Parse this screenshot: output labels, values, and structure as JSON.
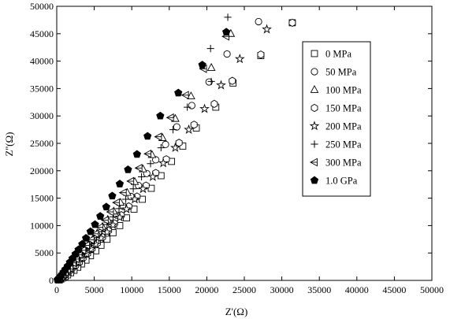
{
  "chart_data": {
    "type": "scatter",
    "title": "",
    "xlabel": "Z'(Ω)",
    "ylabel": "Z''(Ω)",
    "xlim": [
      0,
      50000
    ],
    "ylim": [
      0,
      50000
    ],
    "xticks": [
      "0",
      "5000",
      "10000",
      "15000",
      "20000",
      "25000",
      "30000",
      "35000",
      "40000",
      "45000",
      "50000"
    ],
    "yticks": [
      "0",
      "5000",
      "10000",
      "15000",
      "20000",
      "25000",
      "30000",
      "35000",
      "40000",
      "45000",
      "50000"
    ],
    "grid": false,
    "legend_position": "right",
    "series": [
      {
        "name": "0 MPa",
        "marker": "square",
        "points": [
          [
            31400,
            47000
          ],
          [
            27200,
            41000
          ],
          [
            23500,
            36000
          ],
          [
            21200,
            31600
          ],
          [
            18600,
            27800
          ],
          [
            16800,
            24500
          ],
          [
            15300,
            21700
          ],
          [
            13900,
            19100
          ],
          [
            12600,
            16800
          ],
          [
            11400,
            14800
          ],
          [
            10300,
            13000
          ],
          [
            9300,
            11400
          ],
          [
            8400,
            10000
          ],
          [
            7500,
            8700
          ],
          [
            6700,
            7500
          ],
          [
            5900,
            6400
          ],
          [
            5200,
            5400
          ],
          [
            4500,
            4500
          ],
          [
            3900,
            3700
          ],
          [
            3300,
            3000
          ],
          [
            2800,
            2400
          ],
          [
            2300,
            1850
          ],
          [
            1850,
            1400
          ],
          [
            1450,
            1000
          ],
          [
            1100,
            700
          ],
          [
            800,
            450
          ],
          [
            550,
            250
          ],
          [
            350,
            100
          ]
        ]
      },
      {
        "name": "50 MPa",
        "marker": "circle",
        "points": [
          [
            26900,
            47200
          ],
          [
            22700,
            41300
          ],
          [
            20300,
            36200
          ],
          [
            18000,
            31900
          ],
          [
            16000,
            28000
          ],
          [
            14500,
            24800
          ],
          [
            13200,
            22000
          ],
          [
            12000,
            19500
          ],
          [
            10900,
            17300
          ],
          [
            9900,
            15300
          ],
          [
            8900,
            13500
          ],
          [
            8000,
            11900
          ],
          [
            7200,
            10400
          ],
          [
            6400,
            9000
          ],
          [
            5700,
            7800
          ],
          [
            5000,
            6700
          ],
          [
            4400,
            5700
          ],
          [
            3800,
            4800
          ],
          [
            3200,
            3900
          ],
          [
            2700,
            3200
          ],
          [
            2200,
            2500
          ],
          [
            1800,
            1900
          ],
          [
            1400,
            1400
          ],
          [
            1050,
            1000
          ],
          [
            750,
            650
          ],
          [
            500,
            380
          ],
          [
            300,
            180
          ]
        ]
      },
      {
        "name": "100 MPa",
        "marker": "triangle-up",
        "points": [
          [
            23200,
            45000
          ],
          [
            20600,
            38800
          ],
          [
            17900,
            33600
          ],
          [
            15800,
            29500
          ],
          [
            14100,
            26000
          ],
          [
            12700,
            22900
          ],
          [
            11500,
            20300
          ],
          [
            10400,
            18000
          ],
          [
            9400,
            16000
          ],
          [
            8500,
            14200
          ],
          [
            7600,
            12600
          ],
          [
            6800,
            11100
          ],
          [
            6100,
            9800
          ],
          [
            5400,
            8600
          ],
          [
            4800,
            7500
          ],
          [
            4200,
            6500
          ],
          [
            3700,
            5600
          ],
          [
            3200,
            4700
          ],
          [
            2700,
            3900
          ],
          [
            2300,
            3200
          ],
          [
            1900,
            2600
          ],
          [
            1550,
            2000
          ],
          [
            1200,
            1500
          ],
          [
            900,
            1050
          ],
          [
            650,
            700
          ],
          [
            420,
            400
          ],
          [
            250,
            180
          ]
        ]
      },
      {
        "name": "150 MPa",
        "marker": "hexagon",
        "points": [
          [
            31400,
            47000
          ],
          [
            27200,
            41200
          ],
          [
            23400,
            36400
          ],
          [
            21000,
            32200
          ],
          [
            18300,
            28400
          ],
          [
            16300,
            25100
          ],
          [
            14600,
            22100
          ],
          [
            13200,
            19600
          ],
          [
            11900,
            17300
          ],
          [
            10700,
            15300
          ],
          [
            9600,
            13500
          ],
          [
            8600,
            11900
          ],
          [
            7700,
            10400
          ],
          [
            6900,
            9100
          ],
          [
            6100,
            7900
          ],
          [
            5400,
            6800
          ],
          [
            4700,
            5800
          ],
          [
            4100,
            4900
          ],
          [
            3500,
            4100
          ],
          [
            3000,
            3300
          ],
          [
            2500,
            2700
          ],
          [
            2000,
            2100
          ],
          [
            1600,
            1600
          ],
          [
            1250,
            1150
          ],
          [
            900,
            750
          ],
          [
            620,
            450
          ],
          [
            380,
            220
          ]
        ]
      },
      {
        "name": "200 MPa",
        "marker": "star",
        "points": [
          [
            28000,
            45800
          ],
          [
            24400,
            40400
          ],
          [
            21900,
            35600
          ],
          [
            19700,
            31300
          ],
          [
            17600,
            27500
          ],
          [
            15800,
            24200
          ],
          [
            14200,
            21400
          ],
          [
            12800,
            18900
          ],
          [
            11500,
            16700
          ],
          [
            10400,
            14800
          ],
          [
            9300,
            13000
          ],
          [
            8400,
            11500
          ],
          [
            7500,
            10100
          ],
          [
            6700,
            8800
          ],
          [
            5900,
            7700
          ],
          [
            5200,
            6600
          ],
          [
            4600,
            5700
          ],
          [
            4000,
            4800
          ],
          [
            3400,
            4000
          ],
          [
            2900,
            3300
          ],
          [
            2400,
            2600
          ],
          [
            2000,
            2000
          ],
          [
            1600,
            1500
          ],
          [
            1200,
            1050
          ],
          [
            850,
            700
          ],
          [
            560,
            400
          ],
          [
            320,
            180
          ]
        ]
      },
      {
        "name": "250 MPa",
        "marker": "plus",
        "points": [
          [
            22800,
            48000
          ],
          [
            20500,
            42300
          ],
          [
            20600,
            36300
          ],
          [
            17400,
            31600
          ],
          [
            15500,
            27500
          ],
          [
            13900,
            24200
          ],
          [
            12500,
            21300
          ],
          [
            11300,
            18900
          ],
          [
            10200,
            16700
          ],
          [
            9200,
            14800
          ],
          [
            8300,
            13100
          ],
          [
            7500,
            11600
          ],
          [
            6700,
            10200
          ],
          [
            6000,
            8900
          ],
          [
            5300,
            7800
          ],
          [
            4700,
            6700
          ],
          [
            4100,
            5800
          ],
          [
            3600,
            4900
          ],
          [
            3100,
            4100
          ],
          [
            2600,
            3400
          ],
          [
            2200,
            2700
          ],
          [
            1800,
            2100
          ],
          [
            1450,
            1600
          ],
          [
            1100,
            1150
          ],
          [
            800,
            780
          ],
          [
            520,
            450
          ],
          [
            300,
            220
          ]
        ]
      },
      {
        "name": "300 MPa",
        "marker": "triangle-left",
        "points": [
          [
            22600,
            44500
          ],
          [
            19600,
            38600
          ],
          [
            17200,
            33800
          ],
          [
            15200,
            29700
          ],
          [
            13600,
            26200
          ],
          [
            12200,
            23100
          ],
          [
            11000,
            20500
          ],
          [
            9900,
            18100
          ],
          [
            8900,
            16000
          ],
          [
            8000,
            14200
          ],
          [
            7200,
            12500
          ],
          [
            6500,
            11000
          ],
          [
            5800,
            9700
          ],
          [
            5200,
            8500
          ],
          [
            4600,
            7400
          ],
          [
            4000,
            6400
          ],
          [
            3500,
            5500
          ],
          [
            3000,
            4700
          ],
          [
            2600,
            3900
          ],
          [
            2200,
            3200
          ],
          [
            1800,
            2600
          ],
          [
            1450,
            2000
          ],
          [
            1150,
            1500
          ],
          [
            850,
            1050
          ],
          [
            600,
            680
          ],
          [
            380,
            380
          ],
          [
            220,
            170
          ]
        ]
      },
      {
        "name": "1.0 GPa",
        "marker": "pentagon-filled",
        "points": [
          [
            22600,
            45300
          ],
          [
            19400,
            39300
          ],
          [
            16200,
            34200
          ],
          [
            13800,
            30000
          ],
          [
            12100,
            26300
          ],
          [
            10700,
            23000
          ],
          [
            9500,
            20200
          ],
          [
            8400,
            17600
          ],
          [
            7400,
            15400
          ],
          [
            6600,
            13400
          ],
          [
            5800,
            11700
          ],
          [
            5100,
            10200
          ],
          [
            4500,
            8900
          ],
          [
            3900,
            7700
          ],
          [
            3400,
            6600
          ],
          [
            2900,
            5600
          ],
          [
            2500,
            4800
          ],
          [
            2100,
            4000
          ],
          [
            1750,
            3300
          ],
          [
            1450,
            2600
          ],
          [
            1150,
            2000
          ],
          [
            900,
            1500
          ],
          [
            680,
            1050
          ],
          [
            480,
            700
          ],
          [
            320,
            420
          ],
          [
            190,
            220
          ],
          [
            100,
            90
          ]
        ]
      }
    ]
  }
}
